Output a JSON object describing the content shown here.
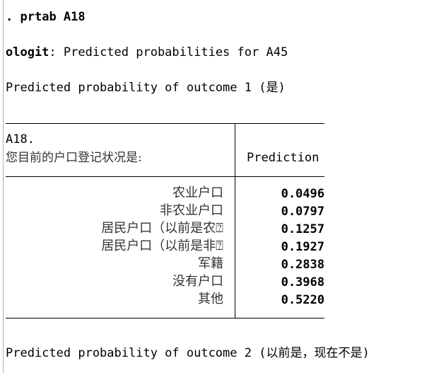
{
  "command": {
    "prompt": ".",
    "text": "prtab A18"
  },
  "model_line": {
    "model": "ologit",
    "rest": ": Predicted probabilities for A45"
  },
  "outcome1_heading": "Predicted probability of outcome 1 (是)",
  "table": {
    "var_name": "A18.",
    "question": "您目前的户口登记状况是:",
    "col_header": "Prediction",
    "rows": [
      {
        "label": "农业户口",
        "value": "0.0496"
      },
      {
        "label": "非农业户口",
        "value": "0.0797"
      },
      {
        "label": "居民户口（以前是农⍰",
        "value": "0.1257"
      },
      {
        "label": "居民户口（以前是非⍰",
        "value": "0.1927"
      },
      {
        "label": "军籍",
        "value": "0.2838"
      },
      {
        "label": "没有户口",
        "value": "0.3968"
      },
      {
        "label": "其他",
        "value": "0.5220"
      }
    ]
  },
  "outcome2_heading": "Predicted probability of outcome 2 (以前是，现在不是)"
}
